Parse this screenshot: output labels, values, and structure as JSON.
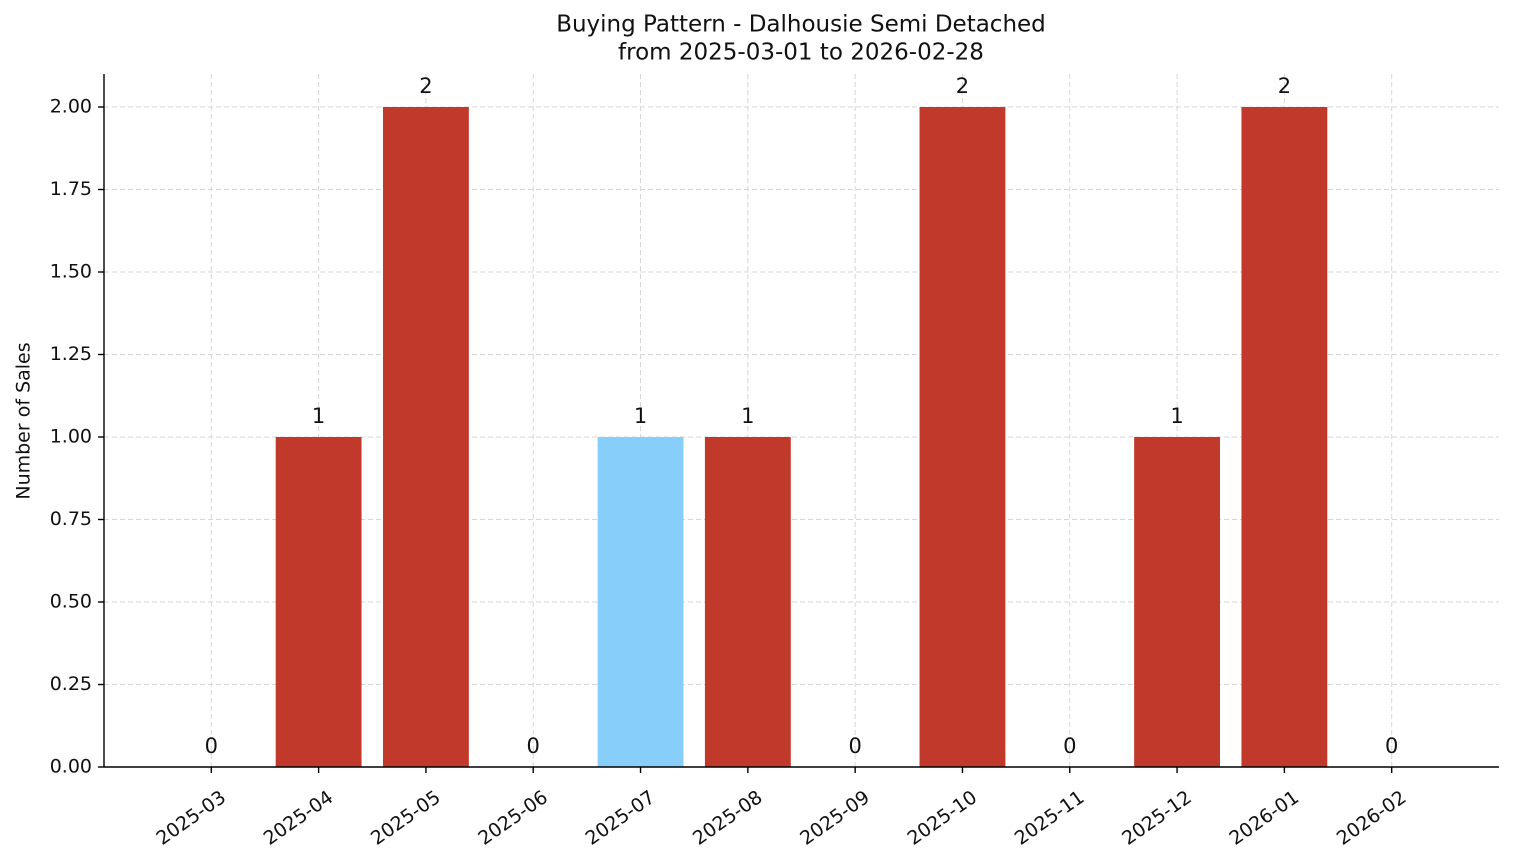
{
  "chart_data": {
    "type": "bar",
    "title": "Buying Pattern - Dalhousie Semi Detached",
    "subtitle": "from 2025-03-01 to 2026-02-28",
    "y_label": "Number of Sales",
    "categories": [
      "2025-03",
      "2025-04",
      "2025-05",
      "2025-06",
      "2025-07",
      "2025-08",
      "2025-09",
      "2025-10",
      "2025-11",
      "2025-12",
      "2026-01",
      "2026-02"
    ],
    "values": [
      0,
      1,
      2,
      0,
      1,
      1,
      0,
      2,
      0,
      1,
      2,
      0
    ],
    "colors": [
      "#c0392b",
      "#c0392b",
      "#c0392b",
      "#c0392b",
      "#87cefa",
      "#c0392b",
      "#c0392b",
      "#c0392b",
      "#c0392b",
      "#c0392b",
      "#c0392b",
      "#c0392b"
    ],
    "ylim": [
      0,
      2.1
    ],
    "yticks": [
      {
        "value": 0,
        "label": "0.00"
      },
      {
        "value": 0.25,
        "label": "0.25"
      },
      {
        "value": 0.5,
        "label": "0.50"
      },
      {
        "value": 0.75,
        "label": "0.75"
      },
      {
        "value": 1,
        "label": "1.00"
      },
      {
        "value": 1.25,
        "label": "1.25"
      },
      {
        "value": 1.5,
        "label": "1.50"
      },
      {
        "value": 1.75,
        "label": "1.75"
      },
      {
        "value": 2,
        "label": "2.00"
      }
    ],
    "grid": true
  }
}
